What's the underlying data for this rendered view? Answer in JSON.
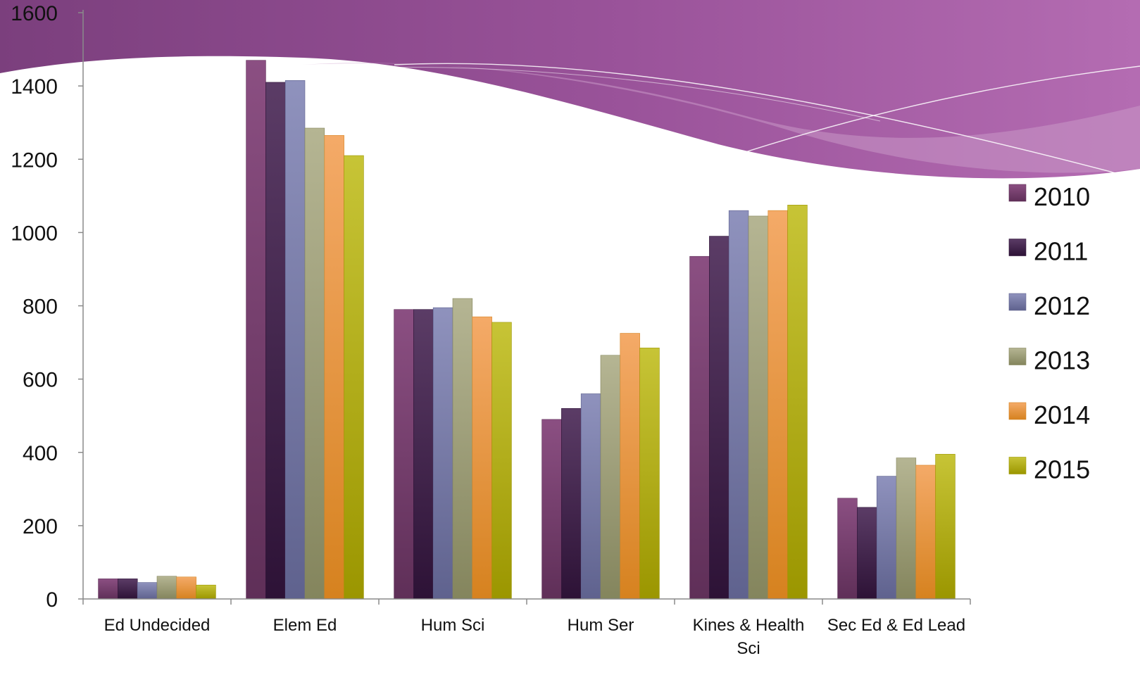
{
  "chart_data": {
    "type": "bar",
    "categories": [
      "Ed Undecided",
      "Elem Ed",
      "Hum Sci",
      "Hum Ser",
      "Kines & Health Sci",
      "Sec Ed & Ed Lead"
    ],
    "category_lines": [
      [
        "Ed Undecided"
      ],
      [
        "Elem Ed"
      ],
      [
        "Hum Sci"
      ],
      [
        "Hum Ser"
      ],
      [
        "Kines & Health",
        "Sci"
      ],
      [
        "Sec Ed & Ed Lead"
      ]
    ],
    "series": [
      {
        "name": "2010",
        "values": [
          55,
          1470,
          790,
          490,
          935,
          275
        ],
        "color": "#8b4f82",
        "color_dark": "#5f2f58"
      },
      {
        "name": "2011",
        "values": [
          55,
          1410,
          790,
          520,
          990,
          250
        ],
        "color": "#5b3c66",
        "color_dark": "#2d1236"
      },
      {
        "name": "2012",
        "values": [
          45,
          1415,
          795,
          560,
          1060,
          335
        ],
        "color": "#8f92bd",
        "color_dark": "#5f628e"
      },
      {
        "name": "2013",
        "values": [
          62,
          1285,
          820,
          665,
          1045,
          385
        ],
        "color": "#b5b593",
        "color_dark": "#84855d"
      },
      {
        "name": "2014",
        "values": [
          60,
          1265,
          770,
          725,
          1060,
          365
        ],
        "color": "#f4aa68",
        "color_dark": "#d6821f"
      },
      {
        "name": "2015",
        "values": [
          38,
          1210,
          755,
          685,
          1075,
          395
        ],
        "color": "#c7c436",
        "color_dark": "#9b9600"
      }
    ],
    "yticks": [
      0,
      200,
      400,
      600,
      800,
      1000,
      1200,
      1400,
      1600
    ],
    "ylim": [
      0,
      1600
    ],
    "grid": false,
    "legend": "right",
    "title": "",
    "xlabel": "",
    "ylabel": ""
  },
  "theme": {
    "banner_dark": "#7a3f7c",
    "banner_light": "#a85ea4"
  }
}
